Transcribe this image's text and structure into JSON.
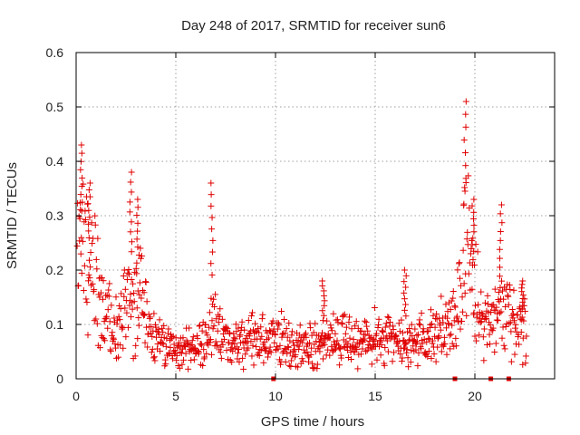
{
  "chart_data": {
    "type": "scatter",
    "title": "Day 248 of 2017, SRMTID for receiver sun6",
    "xlabel": "GPS time / hours",
    "ylabel": "SRMTID / TECUs",
    "xlim": [
      0,
      24
    ],
    "ylim": [
      0,
      0.6
    ],
    "x_ticks": [
      0,
      5,
      10,
      15,
      20
    ],
    "x_tick_labels": [
      "0",
      "5",
      "10",
      "15",
      "20"
    ],
    "y_ticks": [
      0,
      0.1,
      0.2,
      0.3,
      0.4,
      0.5,
      0.6
    ],
    "y_tick_labels": [
      "0",
      "0.1",
      "0.2",
      "0.3",
      "0.4",
      "0.5",
      "0.6"
    ],
    "grid": true,
    "marker": "plus",
    "color": "#e00000",
    "series": [
      {
        "name": "SRMTID",
        "envelope_hours": [
          0,
          0.3,
          0.7,
          1.0,
          1.5,
          2.0,
          2.5,
          2.8,
          3.1,
          3.5,
          4.0,
          5.0,
          6.0,
          6.8,
          7.5,
          9.0,
          10.0,
          11.0,
          12.0,
          12.5,
          13.5,
          14.5,
          15.5,
          16.5,
          17.5,
          18.5,
          19.0,
          19.5,
          19.8,
          20.1,
          20.5,
          21.0,
          21.5,
          22.0,
          22.6
        ],
        "envelope_median": [
          0.26,
          0.24,
          0.2,
          0.16,
          0.11,
          0.09,
          0.13,
          0.16,
          0.15,
          0.12,
          0.07,
          0.06,
          0.05,
          0.1,
          0.07,
          0.07,
          0.07,
          0.06,
          0.06,
          0.07,
          0.07,
          0.07,
          0.08,
          0.07,
          0.07,
          0.09,
          0.13,
          0.22,
          0.2,
          0.15,
          0.09,
          0.1,
          0.13,
          0.1,
          0.1
        ],
        "peaks": [
          {
            "x": 0.25,
            "y": 0.43
          },
          {
            "x": 0.65,
            "y": 0.36
          },
          {
            "x": 2.75,
            "y": 0.38
          },
          {
            "x": 3.1,
            "y": 0.33
          },
          {
            "x": 6.8,
            "y": 0.36
          },
          {
            "x": 12.4,
            "y": 0.18
          },
          {
            "x": 16.5,
            "y": 0.2
          },
          {
            "x": 19.5,
            "y": 0.51
          },
          {
            "x": 19.9,
            "y": 0.33
          },
          {
            "x": 21.3,
            "y": 0.32
          },
          {
            "x": 22.4,
            "y": 0.18
          }
        ],
        "zero_points_hours": [
          9.9,
          19.0,
          20.8,
          21.7
        ]
      }
    ]
  }
}
